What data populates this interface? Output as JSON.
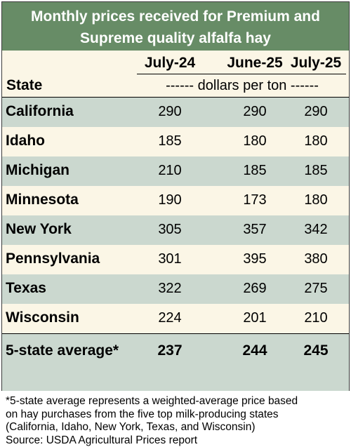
{
  "title": {
    "line1": "Monthly prices received for Premium and",
    "line2": "Supreme quality alfalfa hay"
  },
  "state_header": "State",
  "columns": [
    "July-24",
    "June-25",
    "July-25"
  ],
  "units": "------ dollars per ton ------",
  "colors": {
    "title_band": "#678c66",
    "row_shade": "#cbd8cf",
    "row_light": "#fbf6e6"
  },
  "chart_data": {
    "type": "table",
    "title": "Monthly prices received for Premium and Supreme quality alfalfa hay",
    "columns": [
      "July-24",
      "June-25",
      "July-25"
    ],
    "units": "dollars per ton",
    "rows": [
      {
        "state": "California",
        "values": [
          290,
          290,
          290
        ]
      },
      {
        "state": "Idaho",
        "values": [
          185,
          180,
          180
        ]
      },
      {
        "state": "Michigan",
        "values": [
          210,
          185,
          185
        ]
      },
      {
        "state": "Minnesota",
        "values": [
          190,
          173,
          180
        ]
      },
      {
        "state": "New York",
        "values": [
          305,
          357,
          342
        ]
      },
      {
        "state": "Pennsylvania",
        "values": [
          301,
          395,
          380
        ]
      },
      {
        "state": "Texas",
        "values": [
          322,
          269,
          275
        ]
      },
      {
        "state": "Wisconsin",
        "values": [
          224,
          201,
          210
        ]
      },
      {
        "state": "5-state average*",
        "values": [
          237,
          244,
          245
        ]
      }
    ]
  },
  "footnote": {
    "line1": "*5-state average represents  a weighted-average price based",
    "line2": "on hay purchases from the five top milk-producing states",
    "line3": "(California, Idaho, New York, Texas, and Wisconsin)",
    "line4": "Source: USDA Agricultural Prices report"
  }
}
